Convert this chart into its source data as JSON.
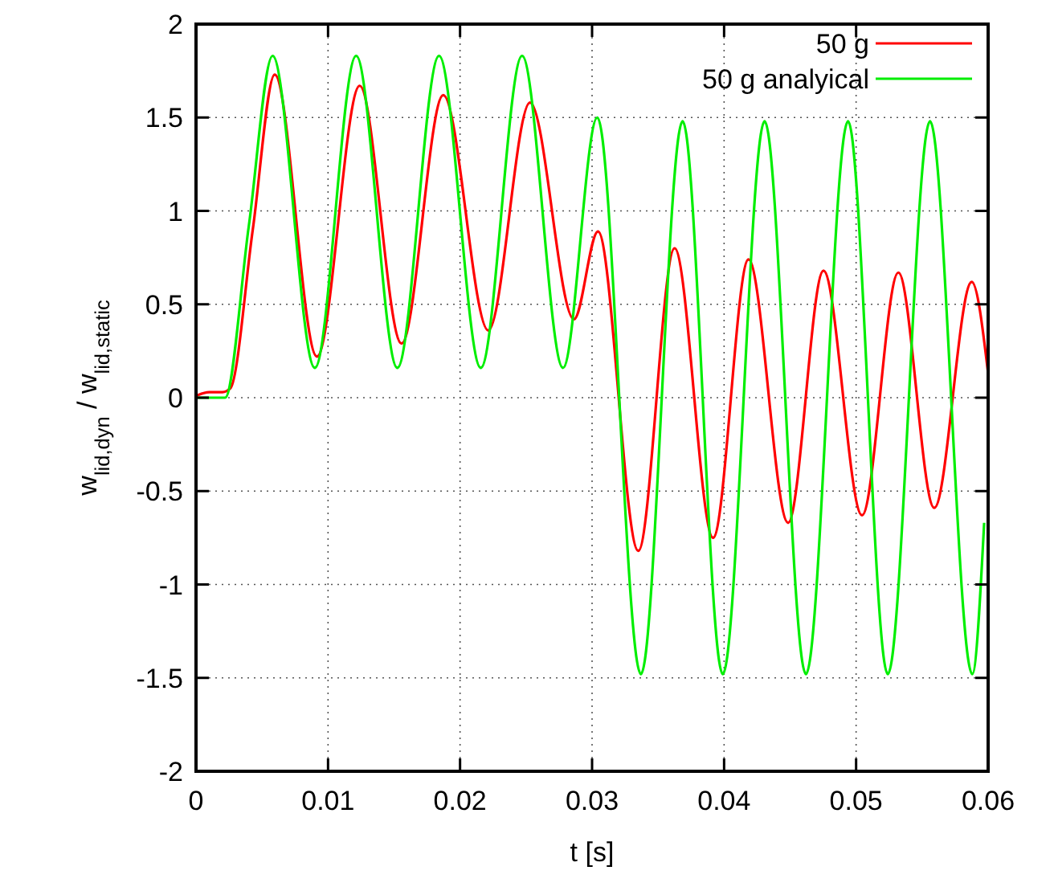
{
  "chart_data": {
    "type": "line",
    "xlabel": "t [s]",
    "ylabel": "w$_{lid,dyn}$ / w$_{lid,static}$",
    "xlim": [
      0,
      0.06
    ],
    "ylim": [
      -2,
      2
    ],
    "xticks": [
      0,
      0.01,
      0.02,
      0.03,
      0.04,
      0.05,
      0.06
    ],
    "yticks": [
      -2,
      -1.5,
      -1,
      -0.5,
      0,
      0.5,
      1,
      1.5,
      2
    ],
    "grid": true,
    "legend": "top right",
    "line_style": "solid",
    "marker": "none",
    "series": [
      {
        "name": "50 g",
        "color": "#ff0000",
        "x": [
          0,
          0.001,
          0.002,
          0.0026,
          0.0043,
          0.00596,
          0.00916,
          0.0124,
          0.01557,
          0.01873,
          0.02214,
          0.0253,
          0.02863,
          0.03045,
          0.0335,
          0.03625,
          0.03917,
          0.04185,
          0.04485,
          0.04753,
          0.05045,
          0.0532,
          0.05592,
          0.05876,
          0.06
        ],
        "values": [
          0.01,
          0.03,
          0.03,
          0.05,
          0.9,
          1.73,
          0.22,
          1.67,
          0.29,
          1.62,
          0.36,
          1.58,
          0.42,
          0.89,
          -0.82,
          0.8,
          -0.75,
          0.74,
          -0.67,
          0.68,
          -0.63,
          0.67,
          -0.59,
          0.62,
          0.13
        ]
      },
      {
        "name": "50 g analyical",
        "color": "#00ee00",
        "x": [
          0,
          0.0022,
          0.004,
          0.0058,
          0.009,
          0.01213,
          0.01525,
          0.01841,
          0.02157,
          0.0247,
          0.0278,
          0.0304,
          0.0337,
          0.03686,
          0.0399,
          0.04307,
          0.0462,
          0.04939,
          0.0524,
          0.0556,
          0.0588,
          0.0597
        ],
        "values": [
          0,
          0,
          0.92,
          1.83,
          0.16,
          1.83,
          0.16,
          1.83,
          0.16,
          1.83,
          0.16,
          1.5,
          -1.48,
          1.48,
          -1.48,
          1.48,
          -1.48,
          1.48,
          -1.48,
          1.48,
          -1.48,
          -0.67
        ]
      }
    ]
  }
}
